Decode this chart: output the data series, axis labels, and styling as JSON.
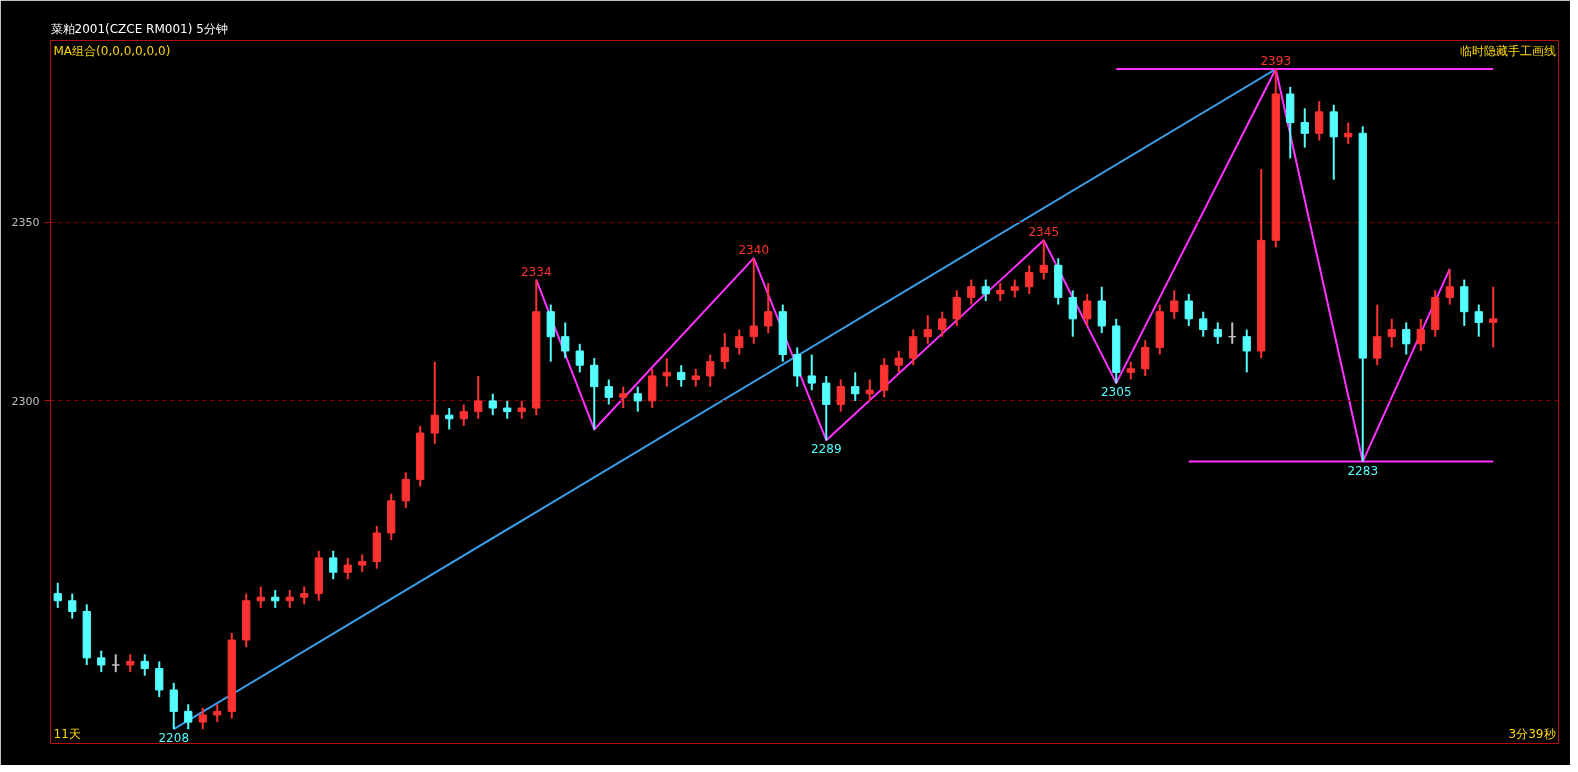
{
  "chart_data": {
    "type": "candlestick",
    "title": "菜粕2001(CZCE RM001)  5分钟",
    "colors": [
      "#54ffff",
      "#54ffff",
      "#54ffff",
      "#54ffff",
      "#c0c0c0",
      "#ff3232",
      "#54ffff",
      "#54ffff",
      "#54ffff",
      "#54ffff",
      "#ff3232",
      "#ff3232",
      "#ff3232",
      "#ff3232",
      "#ff3232",
      "#54ffff",
      "#ff3232",
      "#ff3232",
      "#ff3232",
      "#54ffff",
      "#ff3232",
      "#ff3232",
      "#ff3232",
      "#ff3232",
      "#ff3232",
      "#ff3232",
      "#ff3232",
      "#54ffff",
      "#ff3232",
      "#ff3232",
      "#54ffff",
      "#54ffff",
      "#ff3232",
      "#ff3232",
      "#54ffff",
      "#54ffff",
      "#54ffff",
      "#54ffff",
      "#54ffff",
      "#ff3232",
      "#54ffff",
      "#ff3232",
      "#ff3232",
      "#54ffff",
      "#ff3232",
      "#ff3232",
      "#ff3232",
      "#ff3232",
      "#ff3232",
      "#ff3232",
      "#54ffff",
      "#54ffff",
      "#54ffff",
      "#54ffff",
      "#ff3232",
      "#54ffff",
      "#ff3232",
      "#ff3232",
      "#ff3232",
      "#ff3232",
      "#ff3232",
      "#ff3232",
      "#ff3232",
      "#ff3232",
      "#54ffff",
      "#ff3232",
      "#ff3232",
      "#ff3232",
      "#ff3232",
      "#54ffff",
      "#54ffff",
      "#ff3232",
      "#54ffff",
      "#54ffff",
      "#ff3232",
      "#ff3232",
      "#ff3232",
      "#ff3232",
      "#54ffff",
      "#54ffff",
      "#54ffff",
      "#c0c0c0",
      "#54ffff",
      "#ff3232",
      "#ff3232",
      "#54ffff",
      "#54ffff",
      "#ff3232",
      "#54ffff",
      "#ff3232",
      "#54ffff",
      "#ff3232",
      "#ff3232",
      "#54ffff",
      "#ff3232",
      "#ff3232",
      "#ff3232",
      "#54ffff",
      "#54ffff",
      "#ff3232"
    ],
    "ohlc": [
      [
        2246,
        2249,
        2242,
        2244
      ],
      [
        2244,
        2246,
        2239,
        2241
      ],
      [
        2241,
        2243,
        2226,
        2228
      ],
      [
        2228,
        2230,
        2224,
        2226
      ],
      [
        2226,
        2229,
        2224,
        2226
      ],
      [
        2226,
        2229,
        2224,
        2227
      ],
      [
        2227,
        2229,
        2223,
        2225
      ],
      [
        2225,
        2227,
        2217,
        2219
      ],
      [
        2219,
        2221,
        2208,
        2213
      ],
      [
        2213,
        2215,
        2208,
        2210
      ],
      [
        2210,
        2214,
        2208,
        2212
      ],
      [
        2212,
        2215,
        2210,
        2213
      ],
      [
        2213,
        2235,
        2211,
        2233
      ],
      [
        2233,
        2246,
        2231,
        2244
      ],
      [
        2244,
        2248,
        2242,
        2245
      ],
      [
        2245,
        2247,
        2242,
        2244
      ],
      [
        2244,
        2247,
        2242,
        2245
      ],
      [
        2245,
        2248,
        2243,
        2246
      ],
      [
        2246,
        2258,
        2244,
        2256
      ],
      [
        2256,
        2258,
        2250,
        2252
      ],
      [
        2252,
        2256,
        2250,
        2254
      ],
      [
        2254,
        2257,
        2252,
        2255
      ],
      [
        2255,
        2265,
        2253,
        2263
      ],
      [
        2263,
        2274,
        2261,
        2272
      ],
      [
        2272,
        2280,
        2270,
        2278
      ],
      [
        2278,
        2293,
        2276,
        2291
      ],
      [
        2291,
        2311,
        2288,
        2296
      ],
      [
        2296,
        2298,
        2292,
        2295
      ],
      [
        2295,
        2299,
        2293,
        2297
      ],
      [
        2297,
        2307,
        2295,
        2300
      ],
      [
        2300,
        2302,
        2296,
        2298
      ],
      [
        2298,
        2300,
        2295,
        2297
      ],
      [
        2297,
        2300,
        2295,
        2298
      ],
      [
        2298,
        2334,
        2296,
        2325
      ],
      [
        2325,
        2327,
        2311,
        2318
      ],
      [
        2318,
        2322,
        2312,
        2314
      ],
      [
        2314,
        2316,
        2308,
        2310
      ],
      [
        2310,
        2312,
        2292,
        2304
      ],
      [
        2304,
        2306,
        2299,
        2301
      ],
      [
        2301,
        2304,
        2298,
        2302
      ],
      [
        2302,
        2304,
        2297,
        2300
      ],
      [
        2300,
        2309,
        2298,
        2307
      ],
      [
        2307,
        2312,
        2304,
        2308
      ],
      [
        2308,
        2310,
        2304,
        2306
      ],
      [
        2306,
        2309,
        2304,
        2307
      ],
      [
        2307,
        2313,
        2304,
        2311
      ],
      [
        2311,
        2319,
        2309,
        2315
      ],
      [
        2315,
        2320,
        2313,
        2318
      ],
      [
        2318,
        2340,
        2316,
        2321
      ],
      [
        2321,
        2333,
        2319,
        2325
      ],
      [
        2325,
        2327,
        2311,
        2313
      ],
      [
        2313,
        2315,
        2304,
        2307
      ],
      [
        2307,
        2313,
        2303,
        2305
      ],
      [
        2305,
        2307,
        2289,
        2299
      ],
      [
        2299,
        2306,
        2297,
        2304
      ],
      [
        2304,
        2308,
        2300,
        2302
      ],
      [
        2302,
        2306,
        2300,
        2303
      ],
      [
        2303,
        2312,
        2301,
        2310
      ],
      [
        2310,
        2314,
        2308,
        2312
      ],
      [
        2312,
        2320,
        2310,
        2318
      ],
      [
        2318,
        2324,
        2316,
        2320
      ],
      [
        2320,
        2325,
        2318,
        2323
      ],
      [
        2323,
        2331,
        2321,
        2329
      ],
      [
        2329,
        2334,
        2327,
        2332
      ],
      [
        2332,
        2334,
        2328,
        2330
      ],
      [
        2330,
        2333,
        2328,
        2331
      ],
      [
        2331,
        2334,
        2329,
        2332
      ],
      [
        2332,
        2338,
        2330,
        2336
      ],
      [
        2336,
        2345,
        2334,
        2338
      ],
      [
        2338,
        2340,
        2327,
        2329
      ],
      [
        2329,
        2331,
        2318,
        2323
      ],
      [
        2323,
        2330,
        2321,
        2328
      ],
      [
        2328,
        2332,
        2319,
        2321
      ],
      [
        2321,
        2323,
        2305,
        2308
      ],
      [
        2308,
        2311,
        2306,
        2309
      ],
      [
        2309,
        2317,
        2307,
        2315
      ],
      [
        2315,
        2327,
        2313,
        2325
      ],
      [
        2325,
        2331,
        2323,
        2328
      ],
      [
        2328,
        2330,
        2321,
        2323
      ],
      [
        2323,
        2325,
        2318,
        2320
      ],
      [
        2320,
        2322,
        2316,
        2318
      ],
      [
        2318,
        2322,
        2316,
        2318
      ],
      [
        2318,
        2320,
        2308,
        2314
      ],
      [
        2314,
        2365,
        2312,
        2345
      ],
      [
        2345,
        2393,
        2343,
        2386
      ],
      [
        2386,
        2388,
        2368,
        2378
      ],
      [
        2378,
        2382,
        2371,
        2375
      ],
      [
        2375,
        2384,
        2373,
        2381
      ],
      [
        2381,
        2383,
        2362,
        2374
      ],
      [
        2374,
        2378,
        2372,
        2375
      ],
      [
        2375,
        2377,
        2283,
        2312
      ],
      [
        2312,
        2327,
        2310,
        2318
      ],
      [
        2318,
        2323,
        2315,
        2320
      ],
      [
        2320,
        2322,
        2313,
        2316
      ],
      [
        2316,
        2323,
        2314,
        2320
      ],
      [
        2320,
        2331,
        2318,
        2329
      ],
      [
        2329,
        2337,
        2327,
        2332
      ],
      [
        2332,
        2334,
        2321,
        2325
      ],
      [
        2325,
        2327,
        2318,
        2322
      ],
      [
        2322,
        2332,
        2315,
        2323
      ]
    ],
    "categories": [
      null,
      null,
      null,
      null,
      null,
      null,
      null,
      null,
      null,
      null,
      null,
      null,
      null,
      null,
      null,
      null,
      null,
      null,
      null,
      null,
      null,
      null,
      null,
      null,
      null,
      null,
      null,
      null,
      null,
      null,
      null,
      null,
      null,
      null,
      null,
      null,
      null,
      null,
      null,
      null,
      null,
      null,
      null,
      null,
      null,
      null,
      null,
      null,
      null,
      null,
      null,
      null,
      null,
      null,
      null,
      null,
      null,
      null,
      null,
      null,
      null,
      null,
      null,
      null,
      null,
      null,
      null,
      null,
      null,
      null,
      null,
      null,
      null,
      null,
      null,
      null,
      null,
      null,
      null,
      null,
      null,
      null,
      null,
      null,
      null,
      null,
      null,
      null,
      null,
      null,
      null,
      null,
      null,
      null,
      null,
      null,
      null,
      null,
      null,
      null
    ],
    "series": [
      {
        "type": "line",
        "color": "#3a9ee8",
        "values": [
          null,
          null,
          null,
          null,
          null,
          null,
          null,
          null,
          2208,
          null,
          null,
          null,
          null,
          null,
          null,
          null,
          null,
          null,
          null,
          null,
          null,
          null,
          null,
          null,
          null,
          null,
          null,
          null,
          null,
          null,
          null,
          null,
          null,
          null,
          null,
          null,
          null,
          null,
          null,
          null,
          null,
          null,
          null,
          null,
          null,
          null,
          null,
          null,
          null,
          null,
          null,
          null,
          null,
          null,
          null,
          null,
          null,
          null,
          null,
          null,
          null,
          null,
          null,
          null,
          null,
          null,
          null,
          null,
          null,
          null,
          null,
          null,
          null,
          null,
          null,
          null,
          null,
          null,
          null,
          null,
          null,
          null,
          null,
          null,
          2393,
          null,
          null,
          null,
          null,
          null,
          null,
          null,
          null,
          null,
          null,
          null,
          null,
          null,
          null,
          null
        ]
      },
      {
        "type": "line",
        "color": "#ff32ff",
        "values": [
          null,
          null,
          null,
          null,
          null,
          null,
          null,
          null,
          null,
          null,
          null,
          null,
          null,
          null,
          null,
          null,
          null,
          null,
          null,
          null,
          null,
          null,
          null,
          null,
          null,
          null,
          null,
          null,
          null,
          null,
          null,
          null,
          null,
          2334,
          null,
          null,
          null,
          2292,
          null,
          null,
          null,
          null,
          null,
          null,
          null,
          null,
          null,
          null,
          2340,
          null,
          null,
          null,
          null,
          2289,
          null,
          null,
          null,
          null,
          null,
          null,
          null,
          null,
          null,
          null,
          null,
          null,
          null,
          null,
          2345,
          null,
          null,
          null,
          null,
          2305,
          null,
          null,
          null,
          null,
          null,
          null,
          null,
          null,
          null,
          null,
          2393,
          null,
          null,
          null,
          null,
          null,
          2283,
          null,
          null,
          null,
          null,
          null,
          2337,
          null,
          null,
          null
        ]
      },
      {
        "type": "line",
        "color": "#ff32ff",
        "values": [
          null,
          null,
          null,
          null,
          null,
          null,
          null,
          null,
          null,
          null,
          null,
          null,
          null,
          null,
          null,
          null,
          null,
          null,
          null,
          null,
          null,
          null,
          null,
          null,
          null,
          null,
          null,
          null,
          null,
          null,
          null,
          null,
          null,
          null,
          null,
          null,
          null,
          null,
          null,
          null,
          null,
          null,
          null,
          null,
          null,
          null,
          null,
          null,
          null,
          null,
          null,
          null,
          null,
          null,
          null,
          null,
          null,
          null,
          null,
          null,
          null,
          null,
          null,
          null,
          null,
          null,
          null,
          null,
          null,
          null,
          null,
          null,
          null,
          2393,
          null,
          null,
          null,
          null,
          null,
          null,
          null,
          null,
          null,
          null,
          null,
          null,
          null,
          null,
          null,
          null,
          null,
          null,
          null,
          null,
          null,
          null,
          null,
          null,
          null,
          2393
        ]
      },
      {
        "type": "line",
        "color": "#ff32ff",
        "values": [
          null,
          null,
          null,
          null,
          null,
          null,
          null,
          null,
          null,
          null,
          null,
          null,
          null,
          null,
          null,
          null,
          null,
          null,
          null,
          null,
          null,
          null,
          null,
          null,
          null,
          null,
          null,
          null,
          null,
          null,
          null,
          null,
          null,
          null,
          null,
          null,
          null,
          null,
          null,
          null,
          null,
          null,
          null,
          null,
          null,
          null,
          null,
          null,
          null,
          null,
          null,
          null,
          null,
          null,
          null,
          null,
          null,
          null,
          null,
          null,
          null,
          null,
          null,
          null,
          null,
          null,
          null,
          null,
          null,
          null,
          null,
          null,
          null,
          null,
          null,
          null,
          null,
          null,
          2283,
          null,
          null,
          null,
          null,
          null,
          null,
          null,
          null,
          null,
          null,
          null,
          null,
          null,
          null,
          null,
          null,
          null,
          null,
          null,
          null,
          2283
        ]
      }
    ],
    "ylim": [
      2204,
      2401
    ],
    "yticks": [
      2300,
      2350
    ],
    "tick_labels": "y",
    "grid": "y",
    "annotations": [
      "MA组合(0,0,0,0,0,0)",
      "临时隐藏手工画线",
      "11天",
      "3分39秒",
      {
        "text": "2208",
        "y": 2208
      },
      {
        "text": "2334",
        "y": 2334
      },
      {
        "text": "2340",
        "y": 2340
      },
      {
        "text": "2289",
        "y": 2289
      },
      {
        "text": "2345",
        "y": 2345
      },
      {
        "text": "2305",
        "y": 2305
      },
      {
        "text": "2393",
        "y": 2393
      },
      {
        "text": "2283",
        "y": 2283
      }
    ]
  }
}
